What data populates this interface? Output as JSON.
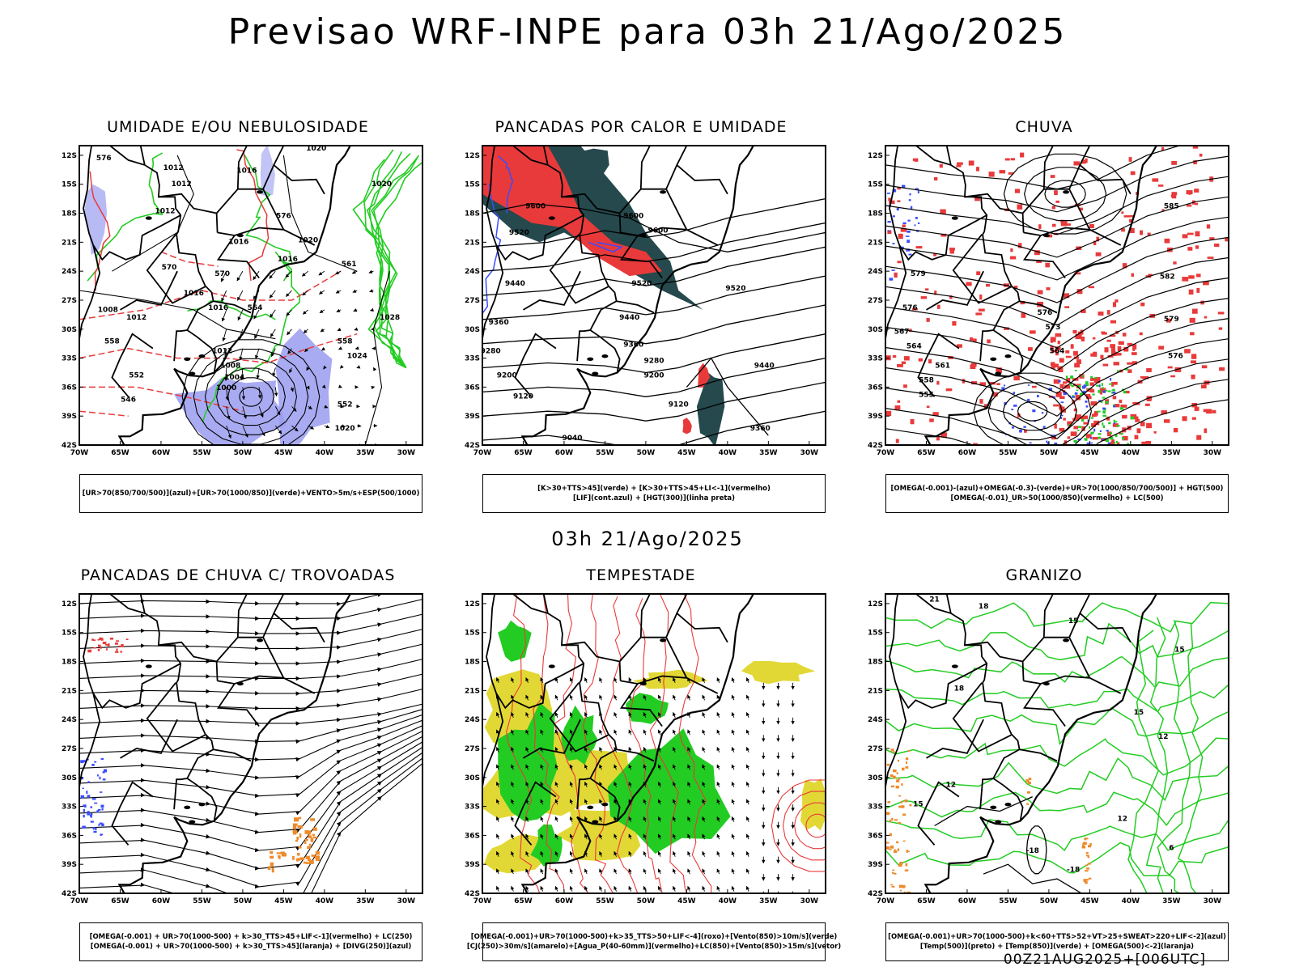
{
  "title": "Previsao WRF-INPE  para 03h 21/Ago/2025",
  "mid_title": "03h 21/Ago/2025",
  "run_stamp": "00Z21AUG2025+[006UTC]",
  "axes": {
    "lat_labels": [
      "12S",
      "15S",
      "18S",
      "21S",
      "24S",
      "27S",
      "30S",
      "33S",
      "36S",
      "39S",
      "42S"
    ],
    "lon_labels": [
      "70W",
      "65W",
      "60W",
      "55W",
      "50W",
      "45W",
      "40W",
      "35W",
      "30W"
    ]
  },
  "colors": {
    "red": "#e83a3a",
    "blue": "#3a4cff",
    "green": "#22cc22",
    "dark_teal": "#25494d",
    "yellow": "#e2d835",
    "orange": "#ee8a2a",
    "lavender": "#9a9cf0"
  },
  "panels": [
    {
      "id": "umidade",
      "title": "UMIDADE E/OU NEBULOSIDADE",
      "legend": [
        "[UR>70(850/700/500)](azul)+[UR>70(1000/850)](verde)+VENTO>5m/s+ESP(500/1000)"
      ],
      "contour_labels": [
        {
          "text": "1012",
          "lon": -58.5,
          "lat": -13.5
        },
        {
          "text": "1012",
          "lon": -57.5,
          "lat": -15.2
        },
        {
          "text": "1012",
          "lon": -59.5,
          "lat": -18.0
        },
        {
          "text": "1020",
          "lon": -41,
          "lat": -11.5
        },
        {
          "text": "1016",
          "lon": -49.5,
          "lat": -13.8
        },
        {
          "text": "1020",
          "lon": -33,
          "lat": -15.2
        },
        {
          "text": "1016",
          "lon": -50.5,
          "lat": -21.2
        },
        {
          "text": "1020",
          "lon": -42,
          "lat": -21.0
        },
        {
          "text": "1016",
          "lon": -44.5,
          "lat": -23.0
        },
        {
          "text": "1016",
          "lon": -56,
          "lat": -26.5
        },
        {
          "text": "1016",
          "lon": -53,
          "lat": -28.0
        },
        {
          "text": "1012",
          "lon": -63,
          "lat": -29.0
        },
        {
          "text": "1008",
          "lon": -66.5,
          "lat": -28.2
        },
        {
          "text": "1012",
          "lon": -52.5,
          "lat": -32.5
        },
        {
          "text": "1008",
          "lon": -51.5,
          "lat": -34.0
        },
        {
          "text": "1004",
          "lon": -51,
          "lat": -35.2
        },
        {
          "text": "1000",
          "lon": -52,
          "lat": -36.3
        },
        {
          "text": "1028",
          "lon": -32,
          "lat": -29.0
        },
        {
          "text": "1024",
          "lon": -36,
          "lat": -33.0
        },
        {
          "text": "1020",
          "lon": -37.5,
          "lat": -40.5
        },
        {
          "text": "576",
          "lon": -67,
          "lat": -12.5
        },
        {
          "text": "570",
          "lon": -59,
          "lat": -23.8
        },
        {
          "text": "570",
          "lon": -52.5,
          "lat": -24.5
        },
        {
          "text": "576",
          "lon": -45,
          "lat": -18.5
        },
        {
          "text": "564",
          "lon": -48.5,
          "lat": -28.0
        },
        {
          "text": "558",
          "lon": -66,
          "lat": -31.5
        },
        {
          "text": "552",
          "lon": -63,
          "lat": -35.0
        },
        {
          "text": "546",
          "lon": -64,
          "lat": -37.5
        },
        {
          "text": "558",
          "lon": -37.5,
          "lat": -31.5
        },
        {
          "text": "552",
          "lon": -37.5,
          "lat": -38.0
        },
        {
          "text": "561",
          "lon": -37,
          "lat": -23.5
        }
      ]
    },
    {
      "id": "pancadas-calor",
      "title": "PANCADAS POR CALOR E UMIDADE",
      "legend": [
        "[K>30+TTS>45](verde) + [K>30+TTS>45+LI<-1](vermelho)",
        "[LIF](cont.azul) + [HGT(300)](linha preta)"
      ],
      "contour_labels": [
        {
          "text": "9600",
          "lon": -63.5,
          "lat": -17.5
        },
        {
          "text": "9520",
          "lon": -65.5,
          "lat": -20.2
        },
        {
          "text": "9600",
          "lon": -51.5,
          "lat": -18.5
        },
        {
          "text": "9600",
          "lon": -48.5,
          "lat": -20.0
        },
        {
          "text": "9520",
          "lon": -50.5,
          "lat": -25.5
        },
        {
          "text": "9440",
          "lon": -66,
          "lat": -25.5
        },
        {
          "text": "9520",
          "lon": -39,
          "lat": -26.0
        },
        {
          "text": "9440",
          "lon": -52,
          "lat": -29.0
        },
        {
          "text": "9360",
          "lon": -68,
          "lat": -29.5
        },
        {
          "text": "9360",
          "lon": -51.5,
          "lat": -31.8
        },
        {
          "text": "9280",
          "lon": -69,
          "lat": -32.5
        },
        {
          "text": "9280",
          "lon": -49,
          "lat": -33.5
        },
        {
          "text": "9200",
          "lon": -67,
          "lat": -35.0
        },
        {
          "text": "9200",
          "lon": -49,
          "lat": -35.0
        },
        {
          "text": "9120",
          "lon": -65,
          "lat": -37.2
        },
        {
          "text": "9120",
          "lon": -46,
          "lat": -38.0
        },
        {
          "text": "9040",
          "lon": -59,
          "lat": -41.5
        },
        {
          "text": "9440",
          "lon": -35.5,
          "lat": -34.0
        },
        {
          "text": "9360",
          "lon": -36,
          "lat": -40.5
        }
      ]
    },
    {
      "id": "chuva",
      "title": "CHUVA",
      "legend": [
        "[OMEGA(-0.001)-(azul)+OMEGA(-0.3)-(verde)+UR>70(1000/850/700/500)] + HGT(500)",
        "[OMEGA(-0.01)_UR>50(1000/850)(vermelho) + LC(500)"
      ],
      "contour_labels": [
        {
          "text": "585",
          "lon": -35,
          "lat": -17.5
        },
        {
          "text": "582",
          "lon": -35.5,
          "lat": -24.8
        },
        {
          "text": "579",
          "lon": -35,
          "lat": -29.2
        },
        {
          "text": "576",
          "lon": -34.5,
          "lat": -33.0
        },
        {
          "text": "579",
          "lon": -66,
          "lat": -24.5
        },
        {
          "text": "576",
          "lon": -67,
          "lat": -28.0
        },
        {
          "text": "573",
          "lon": -49.5,
          "lat": -30.0
        },
        {
          "text": "564",
          "lon": -49,
          "lat": -32.5
        },
        {
          "text": "567",
          "lon": -68,
          "lat": -30.5
        },
        {
          "text": "564",
          "lon": -66.5,
          "lat": -32.0
        },
        {
          "text": "561",
          "lon": -63,
          "lat": -34.0
        },
        {
          "text": "558",
          "lon": -65,
          "lat": -35.5
        },
        {
          "text": "555",
          "lon": -65,
          "lat": -37.0
        },
        {
          "text": "576",
          "lon": -50.5,
          "lat": -28.5
        }
      ]
    },
    {
      "id": "trovoadas",
      "title": "PANCADAS DE CHUVA C/ TROVOADAS",
      "legend": [
        "[OMEGA(-0.001) + UR>70(1000-500) + k>30_TTS>45+LIF<-1](vermelho) + LC(250)",
        "[OMEGA(-0.001) + UR>70(1000-500) + k>30_TTS>45](laranja) + [DIVG(250)](azul)"
      ],
      "contour_labels": []
    },
    {
      "id": "tempestade",
      "title": "TEMPESTADE",
      "legend": [
        "[OMEGA(-0.001)+UR>70(1000-500)+k>35_TTS>50+LIF<-4](roxo)+[Vento(850)>10m/s](verde)",
        "[CJ(250)>30m/s](amarelo)+[Agua_P(40-60mm)](vermelho)+LC(850)+[Vento(850)>15m/s](vetor)"
      ],
      "contour_labels": []
    },
    {
      "id": "granizo",
      "title": "GRANIZO",
      "legend": [
        "[OMEGA(-0.001)+UR>70(1000-500)+k<60+TTS>52+VT>25+SWEAT>220+LIF<-2](azul)",
        "[Temp(500)](preto) + [Temp(850)](verde) + [OMEGA(500)<-2](laranja)"
      ],
      "contour_labels": [
        {
          "text": "21",
          "lon": -64,
          "lat": -11.8
        },
        {
          "text": "18",
          "lon": -58,
          "lat": -12.5
        },
        {
          "text": "18",
          "lon": -61,
          "lat": -21.0
        },
        {
          "text": "15",
          "lon": -47,
          "lat": -14.0
        },
        {
          "text": "15",
          "lon": -34,
          "lat": -17.0
        },
        {
          "text": "15",
          "lon": -39,
          "lat": -23.5
        },
        {
          "text": "12",
          "lon": -36,
          "lat": -26.0
        },
        {
          "text": "12",
          "lon": -41,
          "lat": -34.5
        },
        {
          "text": "15",
          "lon": -66,
          "lat": -33.0
        },
        {
          "text": "12",
          "lon": -62,
          "lat": -31.0
        },
        {
          "text": "-18",
          "lon": -52,
          "lat": -37.8
        },
        {
          "text": "-18",
          "lon": -47,
          "lat": -39.8
        },
        {
          "text": "6",
          "lon": -35,
          "lat": -37.5
        }
      ]
    }
  ]
}
